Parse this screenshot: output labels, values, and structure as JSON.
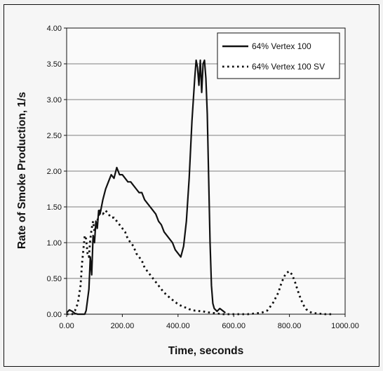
{
  "chart_data": {
    "type": "line",
    "title": "",
    "xlabel": "Time, seconds",
    "ylabel": "Rate of Smoke Production, 1/s",
    "xlim": [
      0,
      1000
    ],
    "ylim": [
      0,
      4
    ],
    "x_ticks": [
      "0.00",
      "200.00",
      "400.00",
      "600.00",
      "800.00",
      "1000.00"
    ],
    "y_ticks": [
      "0.00",
      "0.50",
      "1.00",
      "1.50",
      "2.00",
      "2.50",
      "3.00",
      "3.50",
      "4.00"
    ],
    "grid": "horizontal",
    "legend_position": "top-right",
    "series": [
      {
        "name": "64% Vertex 100",
        "style": "solid",
        "color": "#111111",
        "points": [
          [
            0,
            0.02
          ],
          [
            10,
            0.06
          ],
          [
            20,
            0.04
          ],
          [
            30,
            0.01
          ],
          [
            40,
            0.0
          ],
          [
            55,
            0.0
          ],
          [
            65,
            0.0
          ],
          [
            70,
            0.05
          ],
          [
            75,
            0.2
          ],
          [
            80,
            0.35
          ],
          [
            85,
            0.8
          ],
          [
            90,
            0.55
          ],
          [
            95,
            1.1
          ],
          [
            100,
            1.0
          ],
          [
            105,
            1.3
          ],
          [
            110,
            1.2
          ],
          [
            115,
            1.45
          ],
          [
            120,
            1.4
          ],
          [
            130,
            1.6
          ],
          [
            140,
            1.75
          ],
          [
            150,
            1.85
          ],
          [
            160,
            1.95
          ],
          [
            170,
            1.9
          ],
          [
            180,
            2.05
          ],
          [
            190,
            1.95
          ],
          [
            200,
            1.95
          ],
          [
            210,
            1.9
          ],
          [
            220,
            1.85
          ],
          [
            230,
            1.85
          ],
          [
            240,
            1.8
          ],
          [
            250,
            1.75
          ],
          [
            260,
            1.7
          ],
          [
            270,
            1.7
          ],
          [
            280,
            1.6
          ],
          [
            290,
            1.55
          ],
          [
            300,
            1.5
          ],
          [
            310,
            1.45
          ],
          [
            320,
            1.4
          ],
          [
            330,
            1.3
          ],
          [
            340,
            1.25
          ],
          [
            350,
            1.15
          ],
          [
            360,
            1.1
          ],
          [
            370,
            1.05
          ],
          [
            380,
            1.0
          ],
          [
            390,
            0.9
          ],
          [
            400,
            0.85
          ],
          [
            410,
            0.8
          ],
          [
            420,
            0.95
          ],
          [
            430,
            1.3
          ],
          [
            440,
            1.9
          ],
          [
            450,
            2.7
          ],
          [
            460,
            3.3
          ],
          [
            465,
            3.55
          ],
          [
            470,
            3.45
          ],
          [
            475,
            3.2
          ],
          [
            480,
            3.55
          ],
          [
            485,
            3.1
          ],
          [
            490,
            3.5
          ],
          [
            495,
            3.55
          ],
          [
            500,
            3.3
          ],
          [
            505,
            2.8
          ],
          [
            510,
            1.9
          ],
          [
            515,
            1.0
          ],
          [
            520,
            0.4
          ],
          [
            525,
            0.15
          ],
          [
            530,
            0.08
          ],
          [
            540,
            0.04
          ],
          [
            550,
            0.08
          ],
          [
            560,
            0.05
          ],
          [
            570,
            0.02
          ]
        ]
      },
      {
        "name": "64% Vertex 100 SV",
        "style": "dotted",
        "color": "#111111",
        "points": [
          [
            0,
            0.0
          ],
          [
            20,
            0.0
          ],
          [
            30,
            0.05
          ],
          [
            40,
            0.15
          ],
          [
            50,
            0.4
          ],
          [
            55,
            0.7
          ],
          [
            60,
            0.9
          ],
          [
            65,
            1.1
          ],
          [
            70,
            1.05
          ],
          [
            75,
            0.85
          ],
          [
            80,
            0.8
          ],
          [
            85,
            1.05
          ],
          [
            90,
            1.2
          ],
          [
            95,
            1.3
          ],
          [
            100,
            1.15
          ],
          [
            110,
            1.3
          ],
          [
            120,
            1.45
          ],
          [
            130,
            1.4
          ],
          [
            140,
            1.45
          ],
          [
            150,
            1.4
          ],
          [
            160,
            1.35
          ],
          [
            170,
            1.35
          ],
          [
            180,
            1.3
          ],
          [
            190,
            1.25
          ],
          [
            200,
            1.2
          ],
          [
            210,
            1.15
          ],
          [
            220,
            1.05
          ],
          [
            230,
            1.0
          ],
          [
            240,
            0.95
          ],
          [
            250,
            0.85
          ],
          [
            260,
            0.8
          ],
          [
            270,
            0.75
          ],
          [
            280,
            0.65
          ],
          [
            290,
            0.6
          ],
          [
            300,
            0.55
          ],
          [
            310,
            0.5
          ],
          [
            320,
            0.45
          ],
          [
            330,
            0.4
          ],
          [
            340,
            0.35
          ],
          [
            350,
            0.3
          ],
          [
            360,
            0.27
          ],
          [
            370,
            0.23
          ],
          [
            380,
            0.2
          ],
          [
            390,
            0.17
          ],
          [
            400,
            0.14
          ],
          [
            410,
            0.12
          ],
          [
            420,
            0.1
          ],
          [
            430,
            0.09
          ],
          [
            440,
            0.07
          ],
          [
            450,
            0.06
          ],
          [
            460,
            0.05
          ],
          [
            470,
            0.05
          ],
          [
            480,
            0.04
          ],
          [
            490,
            0.04
          ],
          [
            500,
            0.03
          ],
          [
            520,
            0.02
          ],
          [
            540,
            0.01
          ],
          [
            560,
            0.0
          ],
          [
            600,
            0.0
          ],
          [
            650,
            0.0
          ],
          [
            700,
            0.02
          ],
          [
            720,
            0.05
          ],
          [
            740,
            0.15
          ],
          [
            760,
            0.3
          ],
          [
            770,
            0.42
          ],
          [
            780,
            0.52
          ],
          [
            790,
            0.58
          ],
          [
            800,
            0.6
          ],
          [
            810,
            0.55
          ],
          [
            820,
            0.45
          ],
          [
            830,
            0.33
          ],
          [
            840,
            0.22
          ],
          [
            850,
            0.13
          ],
          [
            860,
            0.07
          ],
          [
            870,
            0.04
          ],
          [
            880,
            0.02
          ],
          [
            900,
            0.01
          ],
          [
            930,
            0.0
          ],
          [
            960,
            0.0
          ]
        ]
      }
    ]
  }
}
